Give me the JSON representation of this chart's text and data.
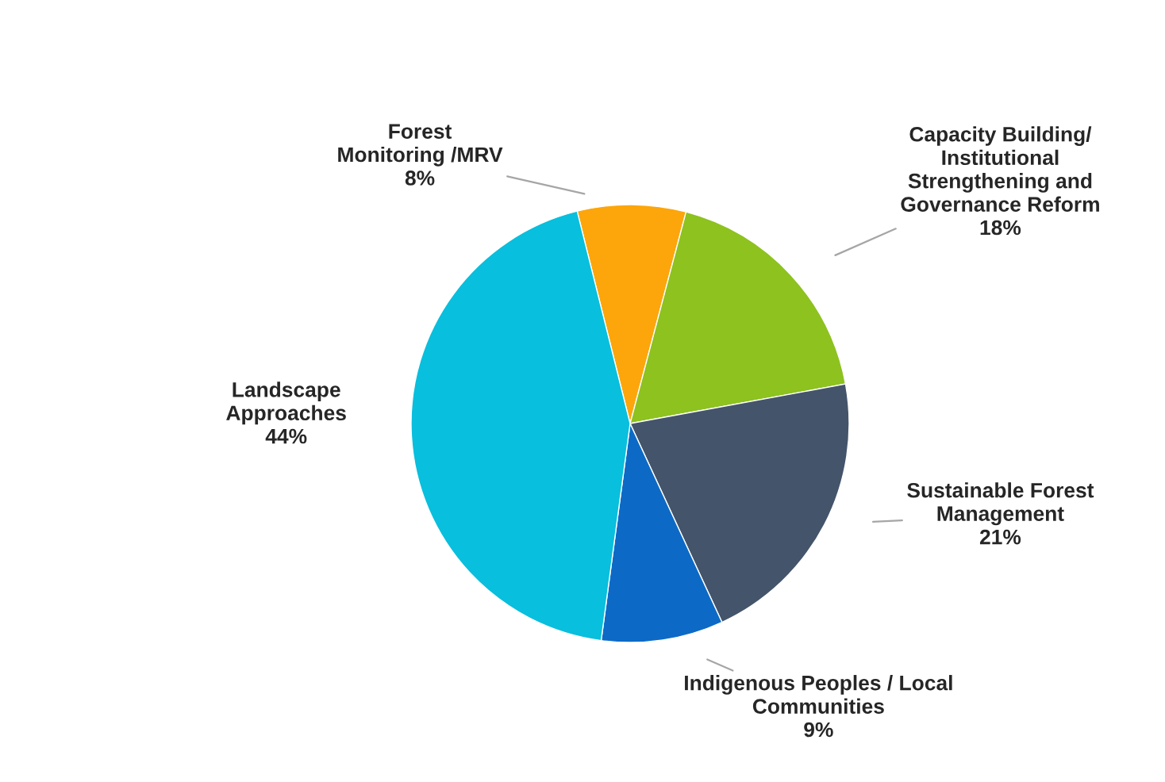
{
  "chart_data": {
    "type": "pie",
    "categories": [
      "Forest\nMonitoring /MRV",
      "Capacity Building/\nInstitutional\nStrengthening and\nGovernance Reform",
      "Sustainable Forest\nManagement",
      "Indigenous Peoples / Local\nCommunities",
      "Landscape\nApproaches"
    ],
    "values": [
      8,
      18,
      21,
      9,
      44
    ],
    "value_labels": [
      "8%",
      "18%",
      "21%",
      "9%",
      "44%"
    ],
    "colors": [
      "#fca60c",
      "#8dc21f",
      "#44546a",
      "#0c6ac6",
      "#08bfdd"
    ],
    "legend": false
  }
}
